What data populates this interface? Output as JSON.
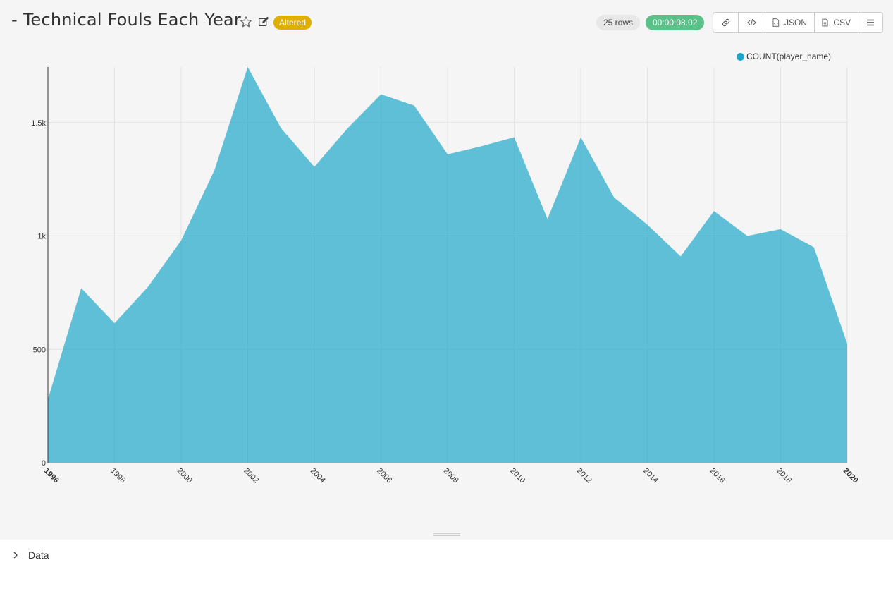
{
  "header": {
    "title": "- Technical Fouls Each Year",
    "altered_badge": "Altered",
    "rows_label": "25 rows",
    "timer": "00:00:08.02",
    "buttons": {
      "json_label": ".JSON",
      "csv_label": ".CSV"
    }
  },
  "legend": {
    "label": "COUNT(player_name)"
  },
  "colors": {
    "area": "#1fa8c9",
    "altered": "#e0b000",
    "timer": "#5ac189"
  },
  "data_panel": {
    "label": "Data"
  },
  "chart_data": {
    "type": "area",
    "title": "- Technical Fouls Each Year",
    "series": [
      {
        "name": "COUNT(player_name)",
        "x": [
          1996,
          1997,
          1998,
          1999,
          2000,
          2001,
          2002,
          2003,
          2004,
          2005,
          2006,
          2007,
          2008,
          2009,
          2010,
          2011,
          2012,
          2013,
          2014,
          2015,
          2016,
          2017,
          2018,
          2019,
          2020
        ],
        "values": [
          280,
          770,
          615,
          775,
          980,
          1290,
          1745,
          1475,
          1305,
          1475,
          1625,
          1575,
          1360,
          1395,
          1435,
          1075,
          1435,
          1170,
          1050,
          910,
          1110,
          1000,
          1030,
          950,
          525
        ]
      }
    ],
    "xticks": [
      "1996",
      "1998",
      "2000",
      "2002",
      "2004",
      "2006",
      "2008",
      "2010",
      "2012",
      "2014",
      "2016",
      "2018",
      "2020"
    ],
    "yticks": [
      0,
      500,
      1000,
      1500
    ],
    "ytick_labels": [
      "0",
      "500",
      "1k",
      "1.5k"
    ],
    "xlim": [
      1996,
      2020
    ],
    "ylim": [
      0,
      1745
    ],
    "grid": true,
    "legend_position": "top-right"
  }
}
